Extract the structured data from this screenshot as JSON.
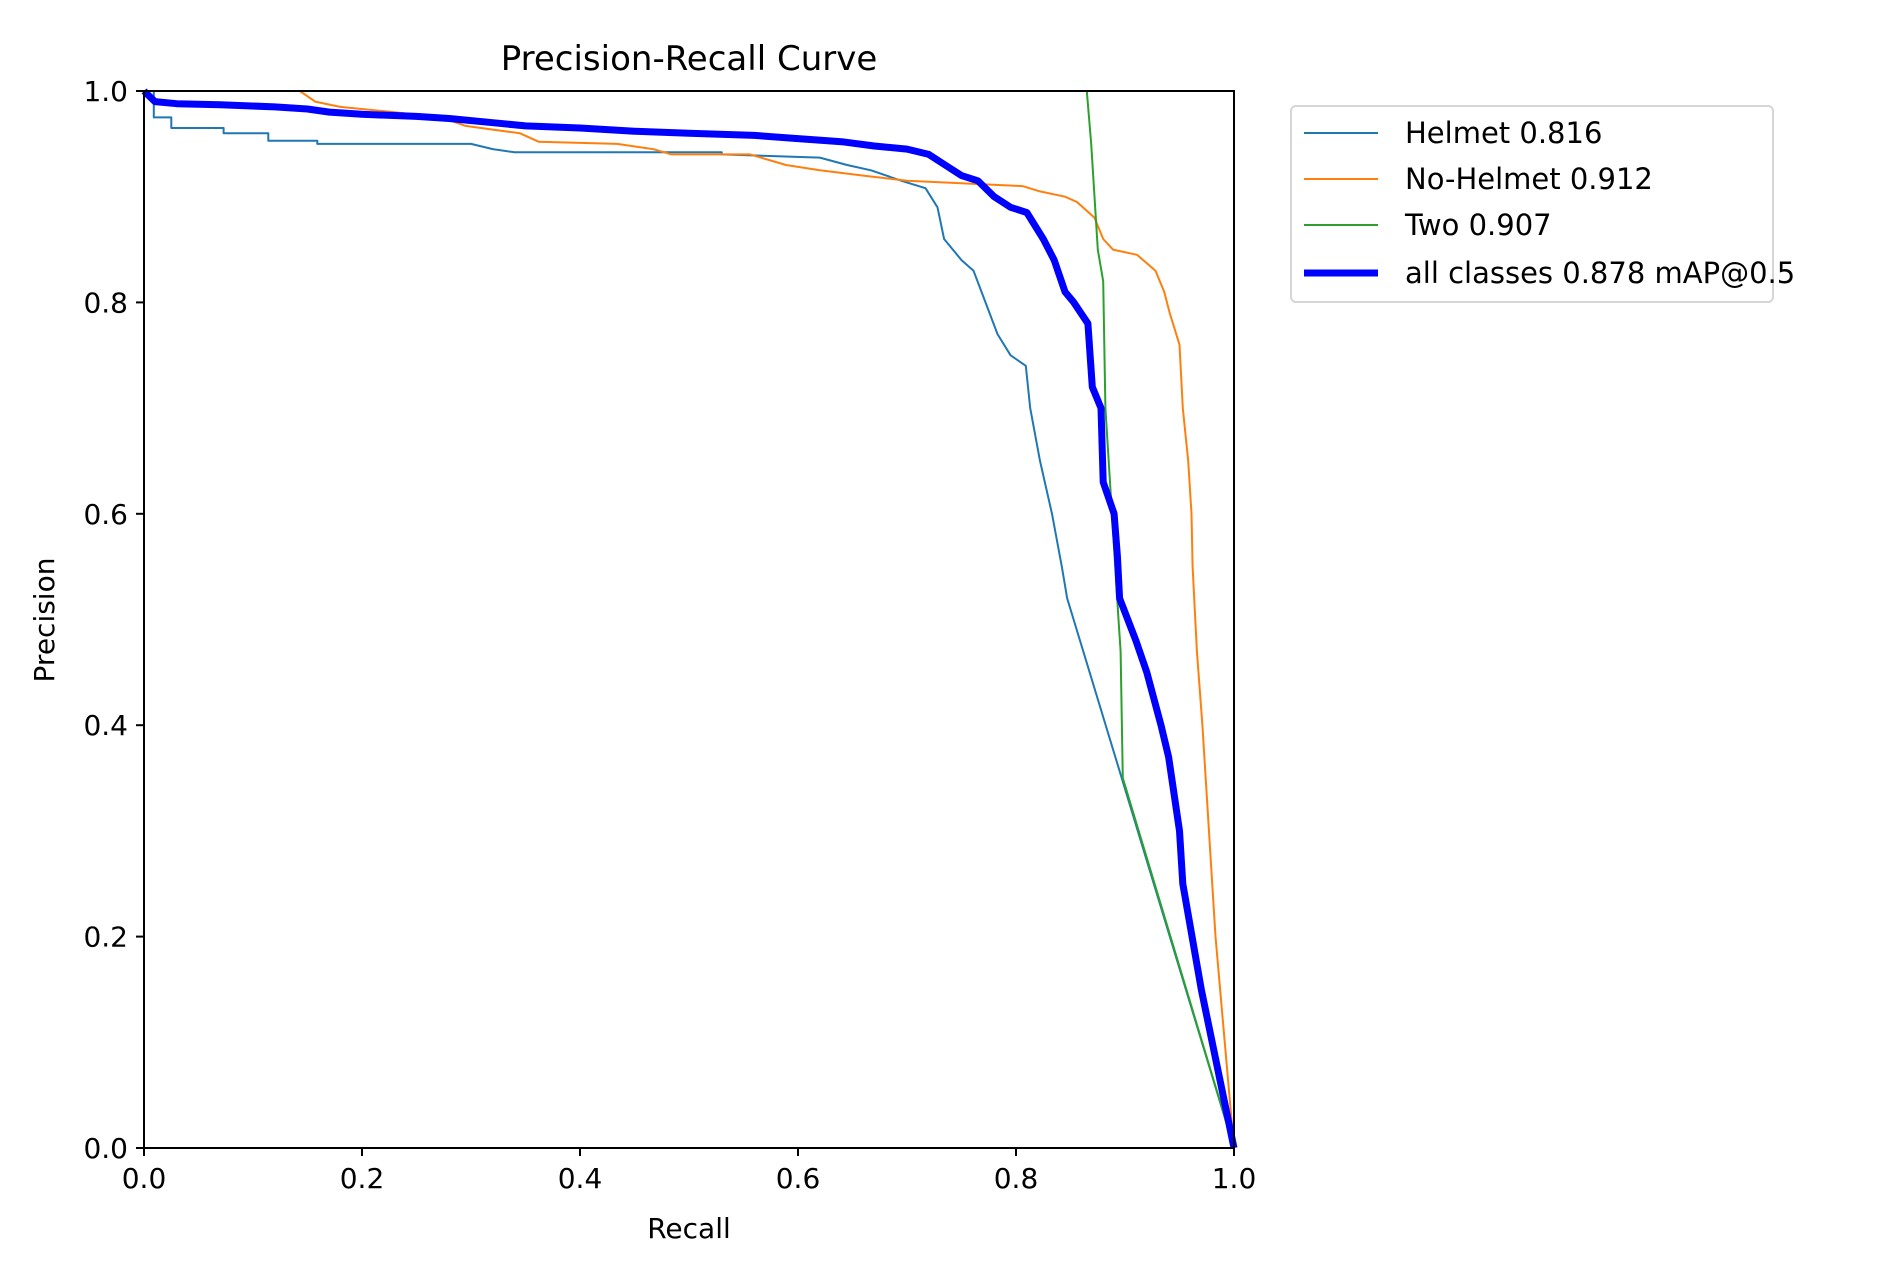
{
  "chart_data": {
    "type": "line",
    "title": "Precision-Recall Curve",
    "xlabel": "Recall",
    "ylabel": "Precision",
    "xlim": [
      0,
      1
    ],
    "ylim": [
      0,
      1
    ],
    "xticks": [
      "0.0",
      "0.2",
      "0.4",
      "0.6",
      "0.8",
      "1.0"
    ],
    "yticks": [
      "0.0",
      "0.2",
      "0.4",
      "0.6",
      "0.8",
      "1.0"
    ],
    "grid": false,
    "legend_placement": "outside-top-right",
    "series": [
      {
        "name": "Helmet 0.816",
        "color": "#1f77b4",
        "width": "thin",
        "x": [
          0,
          0.009,
          0.009,
          0.025,
          0.025,
          0.073,
          0.073,
          0.114,
          0.114,
          0.159,
          0.159,
          0.3,
          0.32,
          0.34,
          0.53,
          0.53,
          0.62,
          0.645,
          0.667,
          0.695,
          0.717,
          0.728,
          0.734,
          0.75,
          0.761,
          0.772,
          0.783,
          0.795,
          0.809,
          0.813,
          0.822,
          0.833,
          0.842,
          0.847,
          1.0
        ],
        "y": [
          1.0,
          1.0,
          0.975,
          0.975,
          0.965,
          0.965,
          0.96,
          0.96,
          0.953,
          0.953,
          0.95,
          0.95,
          0.945,
          0.942,
          0.942,
          0.94,
          0.937,
          0.93,
          0.925,
          0.915,
          0.908,
          0.89,
          0.86,
          0.84,
          0.83,
          0.8,
          0.77,
          0.75,
          0.74,
          0.7,
          0.65,
          0.6,
          0.55,
          0.52,
          0.0
        ]
      },
      {
        "name": "No-Helmet 0.912",
        "color": "#ff7f0e",
        "width": "thin",
        "x": [
          0.143,
          0.157,
          0.18,
          0.229,
          0.273,
          0.295,
          0.345,
          0.362,
          0.434,
          0.467,
          0.484,
          0.556,
          0.589,
          0.62,
          0.66,
          0.7,
          0.745,
          0.806,
          0.822,
          0.845,
          0.856,
          0.872,
          0.88,
          0.889,
          0.911,
          0.928,
          0.936,
          0.941,
          0.95,
          0.953,
          0.958,
          0.961,
          0.962,
          0.966,
          0.971,
          0.983,
          1.0
        ],
        "y": [
          1.0,
          0.99,
          0.985,
          0.98,
          0.975,
          0.967,
          0.96,
          0.952,
          0.95,
          0.945,
          0.94,
          0.94,
          0.93,
          0.925,
          0.92,
          0.915,
          0.913,
          0.91,
          0.905,
          0.9,
          0.895,
          0.88,
          0.86,
          0.85,
          0.845,
          0.83,
          0.81,
          0.79,
          0.76,
          0.7,
          0.65,
          0.6,
          0.55,
          0.47,
          0.4,
          0.2,
          0.0
        ]
      },
      {
        "name": "Two 0.907",
        "color": "#2ca02c",
        "width": "thin",
        "x": [
          0.847,
          0.865,
          0.869,
          0.872,
          0.875,
          0.88,
          0.882,
          0.894,
          0.896,
          0.898,
          1.0
        ],
        "y": [
          1.0,
          1.0,
          0.95,
          0.9,
          0.85,
          0.82,
          0.7,
          0.5,
          0.47,
          0.35,
          0.0
        ]
      },
      {
        "name": "all classes 0.878 mAP@0.5",
        "color": "#0000ff",
        "width": "thick",
        "x": [
          0,
          0.01,
          0.03,
          0.07,
          0.12,
          0.15,
          0.17,
          0.2,
          0.25,
          0.28,
          0.32,
          0.35,
          0.4,
          0.45,
          0.5,
          0.56,
          0.6,
          0.64,
          0.67,
          0.7,
          0.72,
          0.735,
          0.75,
          0.765,
          0.78,
          0.795,
          0.81,
          0.825,
          0.835,
          0.845,
          0.853,
          0.866,
          0.87,
          0.878,
          0.88,
          0.89,
          0.893,
          0.895,
          0.91,
          0.92,
          0.933,
          0.94,
          0.95,
          0.953,
          0.97,
          0.99,
          1.0
        ],
        "y": [
          1.0,
          0.99,
          0.988,
          0.987,
          0.985,
          0.983,
          0.98,
          0.978,
          0.976,
          0.974,
          0.97,
          0.967,
          0.965,
          0.962,
          0.96,
          0.958,
          0.955,
          0.952,
          0.948,
          0.945,
          0.94,
          0.93,
          0.92,
          0.915,
          0.9,
          0.89,
          0.885,
          0.86,
          0.84,
          0.81,
          0.8,
          0.78,
          0.72,
          0.7,
          0.63,
          0.6,
          0.56,
          0.52,
          0.48,
          0.45,
          0.4,
          0.37,
          0.3,
          0.25,
          0.15,
          0.05,
          0.0
        ]
      }
    ]
  }
}
